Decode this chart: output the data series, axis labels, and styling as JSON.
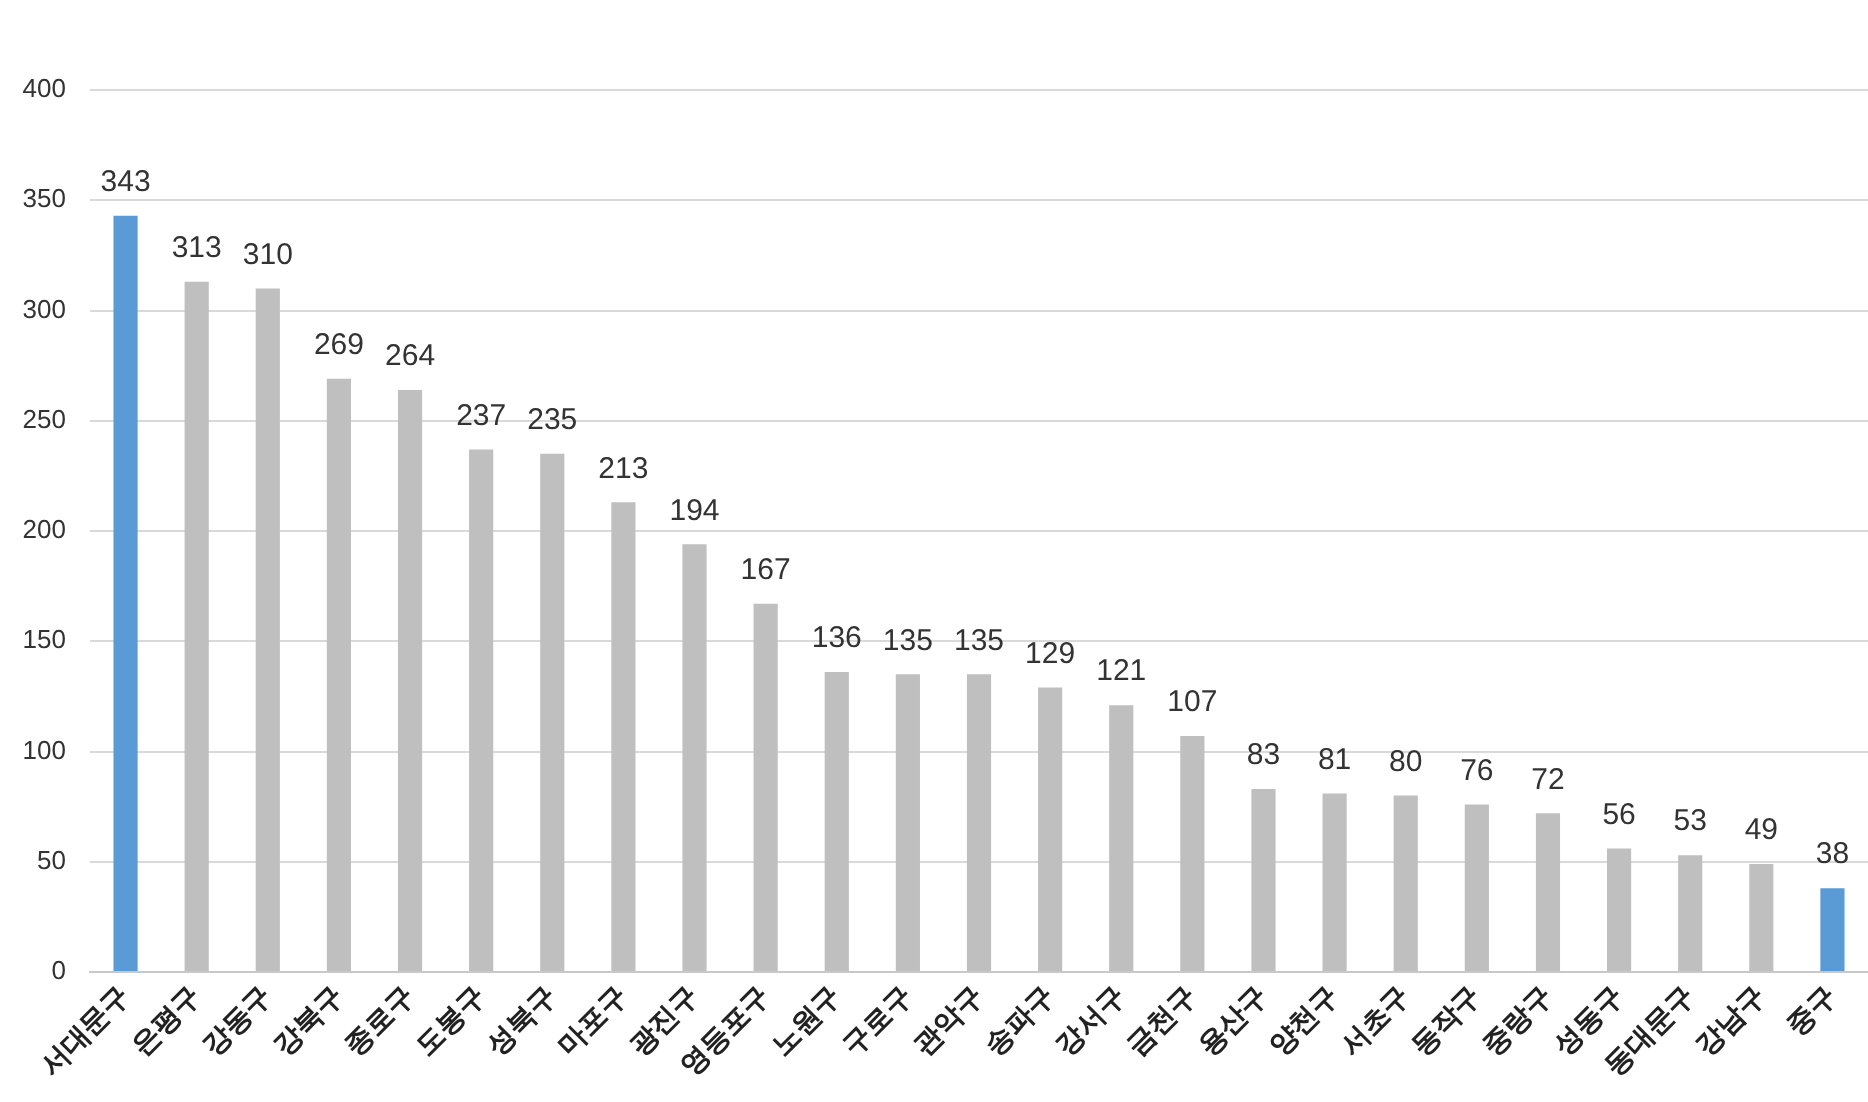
{
  "chart_data": {
    "type": "bar",
    "categories": [
      "서대문구",
      "은평구",
      "강동구",
      "강북구",
      "종로구",
      "도봉구",
      "성북구",
      "마포구",
      "광진구",
      "영등포구",
      "노원구",
      "구로구",
      "관악구",
      "송파구",
      "강서구",
      "금천구",
      "용산구",
      "양천구",
      "서초구",
      "동작구",
      "중랑구",
      "성동구",
      "동대문구",
      "강남구",
      "중구"
    ],
    "values": [
      343,
      313,
      310,
      269,
      264,
      237,
      235,
      213,
      194,
      167,
      136,
      135,
      135,
      129,
      121,
      107,
      83,
      81,
      80,
      76,
      72,
      56,
      53,
      49,
      38
    ],
    "colors": [
      "#5b9bd5",
      "#bfbfbf",
      "#bfbfbf",
      "#bfbfbf",
      "#bfbfbf",
      "#bfbfbf",
      "#bfbfbf",
      "#bfbfbf",
      "#bfbfbf",
      "#bfbfbf",
      "#bfbfbf",
      "#bfbfbf",
      "#bfbfbf",
      "#bfbfbf",
      "#bfbfbf",
      "#bfbfbf",
      "#bfbfbf",
      "#bfbfbf",
      "#bfbfbf",
      "#bfbfbf",
      "#bfbfbf",
      "#bfbfbf",
      "#bfbfbf",
      "#bfbfbf",
      "#5b9bd5"
    ],
    "ylim": [
      0,
      400
    ],
    "yticks": [
      0,
      50,
      100,
      150,
      200,
      250,
      300,
      350,
      400
    ],
    "grid": "y",
    "data_labels": true
  }
}
